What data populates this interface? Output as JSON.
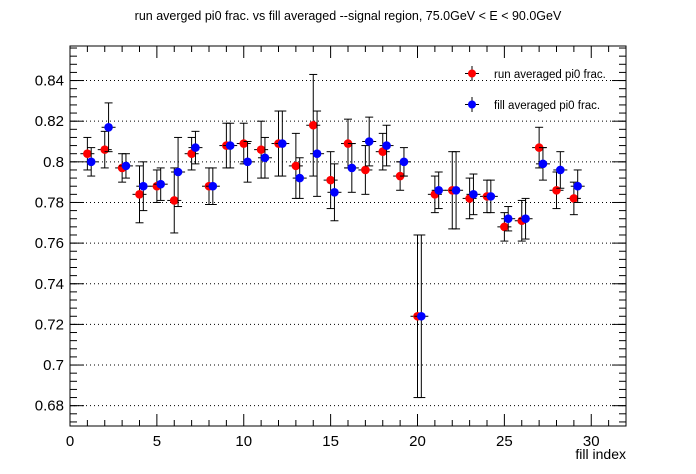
{
  "chart_data": {
    "type": "scatter",
    "title": "run averged pi0 frac. vs fill averaged --signal region, 75.0GeV < E < 90.0GeV",
    "xlabel": "fill index",
    "ylabel": "",
    "xlim": [
      0,
      32
    ],
    "ylim": [
      0.67,
      0.857
    ],
    "x_ticks": [
      0,
      5,
      10,
      15,
      20,
      25,
      30
    ],
    "y_ticks": [
      0.68,
      0.7,
      0.72,
      0.74,
      0.76,
      0.78,
      0.8,
      0.82,
      0.84
    ],
    "y_tick_labels": [
      "0.68",
      "0.7",
      "0.72",
      "0.74",
      "0.76",
      "0.78",
      "0.8",
      "0.82",
      "0.84"
    ],
    "grid": "horizontal dotted at y ticks",
    "legend_position": "top-right",
    "series": [
      {
        "name": "run averaged pi0 frac.",
        "color": "#ff0000",
        "points": [
          {
            "x": 1,
            "y": 0.804,
            "err": 0.008
          },
          {
            "x": 2,
            "y": 0.806,
            "err": 0.009
          },
          {
            "x": 3,
            "y": 0.797,
            "err": 0.007
          },
          {
            "x": 4,
            "y": 0.784,
            "err": 0.014
          },
          {
            "x": 5,
            "y": 0.788,
            "err": 0.008
          },
          {
            "x": 6,
            "y": 0.781,
            "err": 0.016
          },
          {
            "x": 7,
            "y": 0.804,
            "err": 0.008
          },
          {
            "x": 8,
            "y": 0.788,
            "err": 0.009
          },
          {
            "x": 9,
            "y": 0.808,
            "err": 0.011
          },
          {
            "x": 10,
            "y": 0.809,
            "err": 0.01
          },
          {
            "x": 11,
            "y": 0.806,
            "err": 0.014
          },
          {
            "x": 12,
            "y": 0.809,
            "err": 0.016
          },
          {
            "x": 13,
            "y": 0.798,
            "err": 0.016
          },
          {
            "x": 14,
            "y": 0.818,
            "err": 0.025
          },
          {
            "x": 15,
            "y": 0.791,
            "err": 0.014
          },
          {
            "x": 16,
            "y": 0.809,
            "err": 0.012
          },
          {
            "x": 17,
            "y": 0.796,
            "err": 0.012
          },
          {
            "x": 18,
            "y": 0.805,
            "err": 0.009
          },
          {
            "x": 19,
            "y": 0.793,
            "err": 0.007
          },
          {
            "x": 20,
            "y": 0.724,
            "err": 0.04
          },
          {
            "x": 21,
            "y": 0.784,
            "err": 0.009
          },
          {
            "x": 22,
            "y": 0.786,
            "err": 0.019
          },
          {
            "x": 23,
            "y": 0.782,
            "err": 0.01
          },
          {
            "x": 24,
            "y": 0.783,
            "err": 0.008
          },
          {
            "x": 25,
            "y": 0.768,
            "err": 0.007
          },
          {
            "x": 26,
            "y": 0.771,
            "err": 0.01
          },
          {
            "x": 27,
            "y": 0.807,
            "err": 0.01
          },
          {
            "x": 28,
            "y": 0.786,
            "err": 0.009
          },
          {
            "x": 29,
            "y": 0.782,
            "err": 0.008
          }
        ]
      },
      {
        "name": "fill averaged pi0 frac.",
        "color": "#0000ff",
        "points": [
          {
            "x": 1.22,
            "y": 0.8,
            "err": 0.007
          },
          {
            "x": 2.22,
            "y": 0.817,
            "err": 0.012
          },
          {
            "x": 3.22,
            "y": 0.798,
            "err": 0.006
          },
          {
            "x": 4.22,
            "y": 0.788,
            "err": 0.012
          },
          {
            "x": 5.22,
            "y": 0.789,
            "err": 0.008
          },
          {
            "x": 6.22,
            "y": 0.795,
            "err": 0.017
          },
          {
            "x": 7.22,
            "y": 0.807,
            "err": 0.008
          },
          {
            "x": 8.22,
            "y": 0.788,
            "err": 0.009
          },
          {
            "x": 9.22,
            "y": 0.808,
            "err": 0.011
          },
          {
            "x": 10.22,
            "y": 0.8,
            "err": 0.01
          },
          {
            "x": 11.22,
            "y": 0.802,
            "err": 0.01
          },
          {
            "x": 12.22,
            "y": 0.809,
            "err": 0.016
          },
          {
            "x": 13.22,
            "y": 0.792,
            "err": 0.01
          },
          {
            "x": 14.22,
            "y": 0.804,
            "err": 0.021
          },
          {
            "x": 15.22,
            "y": 0.785,
            "err": 0.014
          },
          {
            "x": 16.22,
            "y": 0.797,
            "err": 0.012
          },
          {
            "x": 17.22,
            "y": 0.81,
            "err": 0.012
          },
          {
            "x": 18.22,
            "y": 0.808,
            "err": 0.01
          },
          {
            "x": 19.22,
            "y": 0.8,
            "err": 0.007
          },
          {
            "x": 20.22,
            "y": 0.724,
            "err": 0.04
          },
          {
            "x": 21.22,
            "y": 0.786,
            "err": 0.009
          },
          {
            "x": 22.22,
            "y": 0.786,
            "err": 0.019
          },
          {
            "x": 23.22,
            "y": 0.784,
            "err": 0.01
          },
          {
            "x": 24.22,
            "y": 0.783,
            "err": 0.008
          },
          {
            "x": 25.22,
            "y": 0.772,
            "err": 0.006
          },
          {
            "x": 26.22,
            "y": 0.772,
            "err": 0.01
          },
          {
            "x": 27.22,
            "y": 0.799,
            "err": 0.008
          },
          {
            "x": 28.22,
            "y": 0.796,
            "err": 0.009
          },
          {
            "x": 29.22,
            "y": 0.788,
            "err": 0.008
          }
        ]
      }
    ]
  }
}
